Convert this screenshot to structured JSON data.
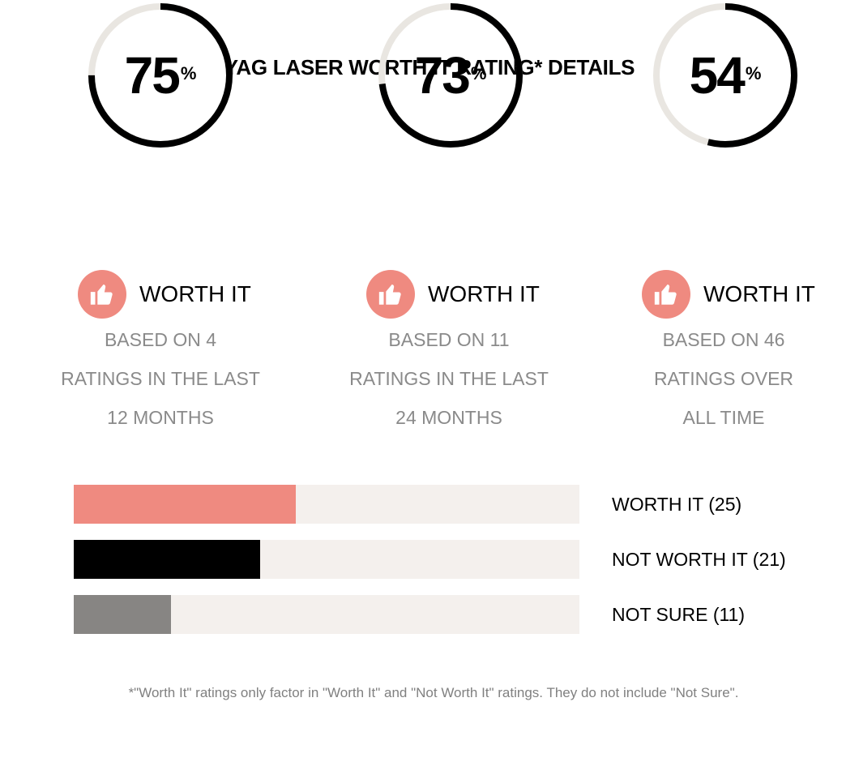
{
  "title": "YAG LASER WORTH IT RATING* DETAILS",
  "rings": [
    {
      "value": 75,
      "percent_sign": "%",
      "label": "WORTH IT",
      "based_lines": [
        "BASED ON 4",
        "RATINGS IN THE LAST",
        "12 MONTHS"
      ]
    },
    {
      "value": 73,
      "percent_sign": "%",
      "label": "WORTH IT",
      "based_lines": [
        "BASED ON 11",
        "RATINGS IN THE LAST",
        "24 MONTHS"
      ]
    },
    {
      "value": 54,
      "percent_sign": "%",
      "label": "WORTH IT",
      "based_lines": [
        "BASED ON 46",
        "RATINGS OVER",
        "ALL TIME"
      ]
    }
  ],
  "bars": [
    {
      "label": "WORTH IT (25)",
      "count": 25,
      "color": "#ef8a80"
    },
    {
      "label": "NOT WORTH IT (21)",
      "count": 21,
      "color": "#000000"
    },
    {
      "label": "NOT SURE (11)",
      "count": 11,
      "color": "#878583"
    }
  ],
  "footnote": "*\"Worth It\" ratings only factor in \"Worth It\" and \"Not Worth It\" ratings. They do not include \"Not Sure\".",
  "colors": {
    "accent": "#ef8a80",
    "ring_track": "#e9e6e1",
    "ring_progress": "#000000",
    "bar_track": "#f4f0ed",
    "muted_text": "#8a8a8a"
  },
  "icons": {
    "thumb": "thumbs-up-icon"
  },
  "chart_data": [
    {
      "type": "pie",
      "title": "",
      "values": [
        75,
        73,
        54
      ],
      "max": 100,
      "labels": [
        "75%",
        "73%",
        "54%"
      ]
    },
    {
      "type": "bar",
      "orientation": "horizontal",
      "categories": [
        "WORTH IT (25)",
        "NOT WORTH IT (21)",
        "NOT SURE (11)"
      ],
      "values": [
        25,
        21,
        11
      ]
    }
  ]
}
